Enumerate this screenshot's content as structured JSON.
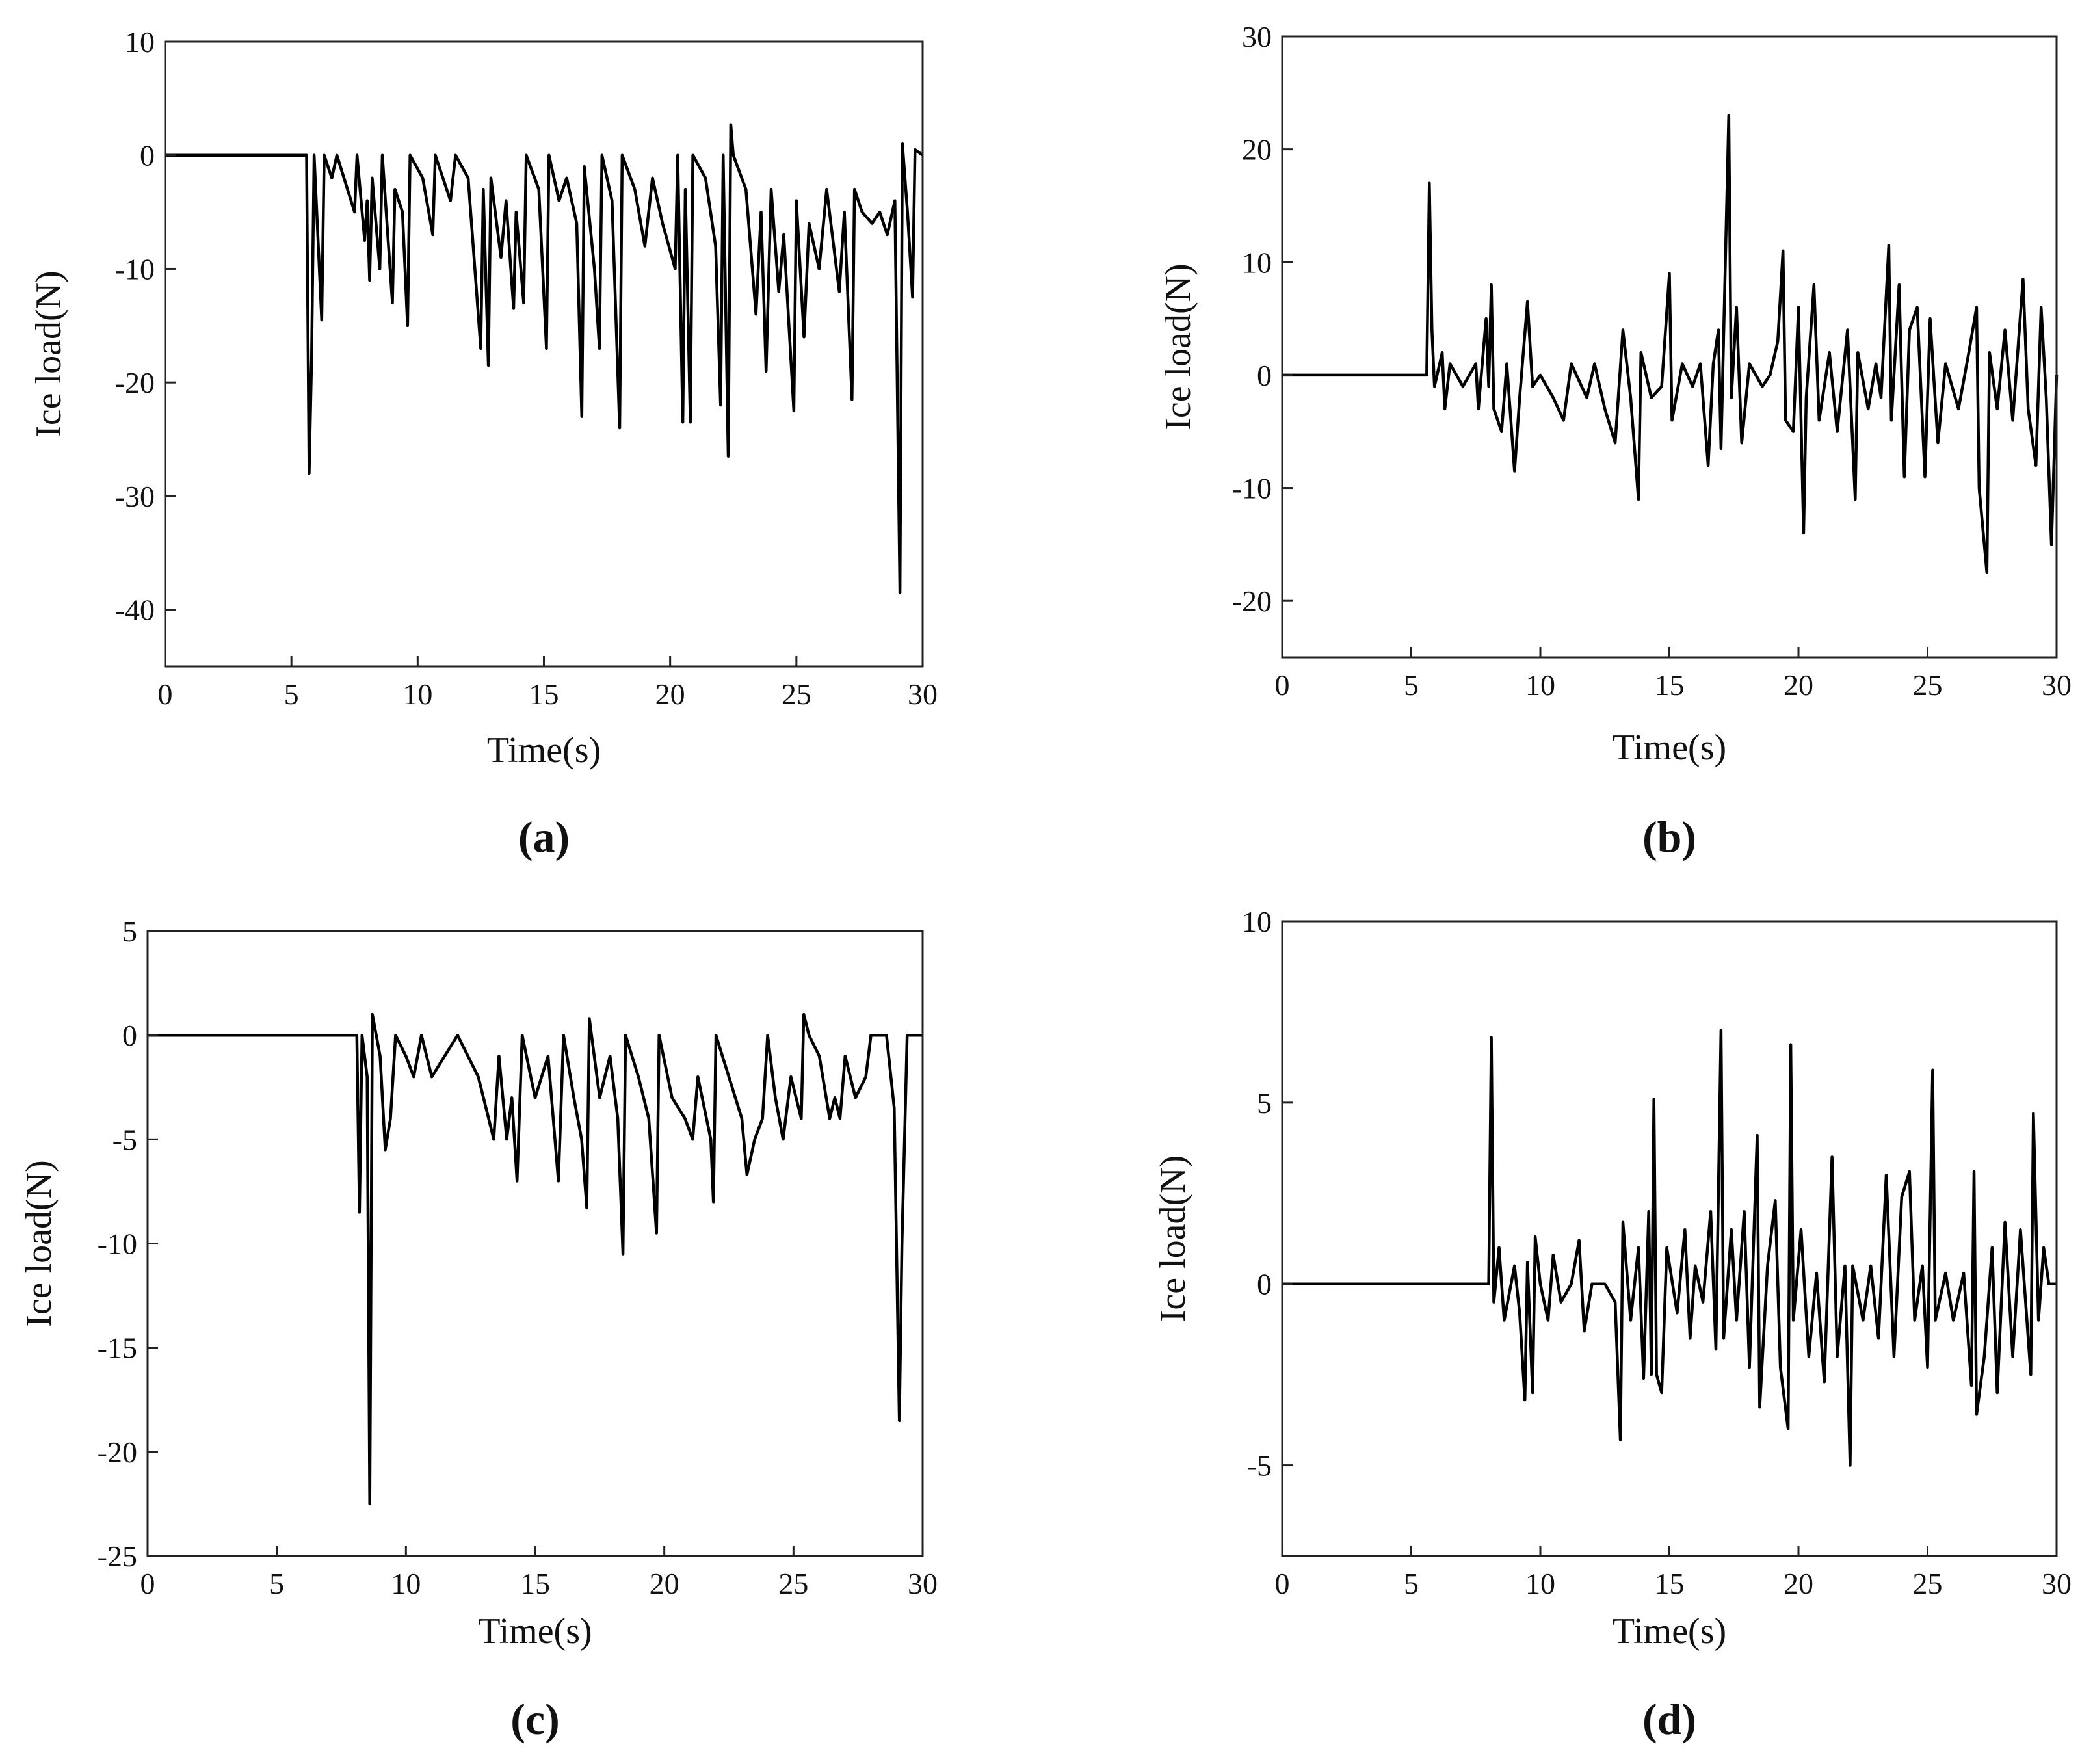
{
  "chart_data": [
    {
      "type": "line",
      "panel_label": "(a)",
      "xlabel": "Time(s)",
      "ylabel": "Ice load(N)",
      "color": "#000000",
      "xlim": [
        0,
        30
      ],
      "ylim": [
        -45,
        10
      ],
      "xticks": [
        0,
        5,
        10,
        15,
        20,
        25,
        30
      ],
      "yticks": [
        -40,
        -30,
        -20,
        -10,
        0,
        10
      ],
      "x": [
        0,
        5.6,
        5.7,
        5.8,
        5.9,
        6.2,
        6.3,
        6.6,
        6.8,
        7.5,
        7.6,
        7.9,
        8.0,
        8.1,
        8.2,
        8.5,
        8.6,
        9.0,
        9.1,
        9.4,
        9.6,
        9.7,
        10.2,
        10.6,
        10.7,
        11.3,
        11.5,
        12.0,
        12.5,
        12.6,
        12.8,
        12.9,
        13.3,
        13.5,
        13.8,
        13.9,
        14.2,
        14.3,
        14.8,
        15.1,
        15.2,
        15.6,
        15.9,
        16.3,
        16.5,
        16.6,
        17.0,
        17.2,
        17.3,
        17.7,
        18.0,
        18.1,
        18.6,
        19.0,
        19.3,
        19.7,
        20.2,
        20.3,
        20.5,
        20.6,
        20.8,
        20.9,
        21.4,
        21.8,
        22.0,
        22.1,
        22.3,
        22.4,
        22.5,
        23.0,
        23.4,
        23.6,
        23.8,
        24.0,
        24.3,
        24.5,
        24.9,
        25.0,
        25.3,
        25.5,
        25.9,
        26.2,
        26.7,
        26.9,
        27.2,
        27.3,
        27.6,
        28.0,
        28.3,
        28.6,
        28.9,
        29.1,
        29.2,
        29.4,
        29.6,
        29.7,
        30
      ],
      "values": [
        0,
        0,
        -28,
        -18,
        0,
        -14.5,
        0,
        -2,
        0,
        -5,
        0,
        -7.5,
        -4,
        -11,
        -2,
        -10,
        0,
        -13,
        -3,
        -5,
        -15,
        0,
        -2,
        -7,
        0,
        -4,
        0,
        -2,
        -17,
        -3,
        -18.5,
        -2,
        -9,
        -4,
        -13.5,
        -5,
        -13,
        0,
        -3,
        -17,
        0,
        -4,
        -2,
        -6,
        -23,
        -1,
        -10,
        -17,
        0,
        -4,
        -24,
        0,
        -3,
        -8,
        -2,
        -6,
        -10,
        0,
        -23.5,
        -3,
        -23.5,
        0,
        -2,
        -8,
        -22,
        0,
        -26.5,
        2.7,
        0,
        -3,
        -14,
        -5,
        -19,
        -3,
        -12,
        -7,
        -22.5,
        -4,
        -16,
        -6,
        -10,
        -3,
        -12,
        -5,
        -21.5,
        -3,
        -5,
        -6,
        -5,
        -7,
        -4,
        -38.5,
        1,
        -5,
        -12.5,
        0.5,
        0
      ]
    },
    {
      "type": "line",
      "panel_label": "(b)",
      "xlabel": "Time(s)",
      "ylabel": "Ice load(N)",
      "color": "#000000",
      "xlim": [
        0,
        30
      ],
      "ylim": [
        -25,
        30
      ],
      "xticks": [
        0,
        5,
        10,
        15,
        20,
        25,
        30
      ],
      "yticks": [
        -20,
        -10,
        0,
        10,
        20,
        30
      ],
      "x": [
        0,
        5.6,
        5.7,
        5.8,
        5.9,
        6.2,
        6.3,
        6.5,
        7.0,
        7.5,
        7.6,
        7.9,
        8.0,
        8.1,
        8.2,
        8.5,
        8.7,
        9.0,
        9.2,
        9.5,
        9.7,
        10.0,
        10.5,
        10.9,
        11.2,
        11.8,
        12.1,
        12.5,
        12.9,
        13.2,
        13.5,
        13.8,
        13.9,
        14.3,
        14.7,
        15.0,
        15.1,
        15.5,
        15.9,
        16.2,
        16.5,
        16.7,
        16.9,
        17.0,
        17.3,
        17.4,
        17.6,
        17.8,
        18.1,
        18.6,
        18.9,
        19.2,
        19.4,
        19.5,
        19.8,
        20.0,
        20.2,
        20.3,
        20.6,
        20.8,
        21.2,
        21.5,
        21.9,
        22.2,
        22.3,
        22.7,
        23.0,
        23.2,
        23.5,
        23.6,
        23.9,
        24.1,
        24.3,
        24.6,
        24.9,
        25.1,
        25.4,
        25.7,
        26.2,
        26.6,
        26.9,
        27.0,
        27.3,
        27.4,
        27.7,
        28.0,
        28.3,
        28.7,
        28.9,
        29.2,
        29.4,
        29.6,
        29.8,
        30
      ],
      "values": [
        0,
        0,
        17,
        4,
        -1,
        2,
        -3,
        1,
        -1,
        1,
        -3,
        5,
        -1,
        8,
        -3,
        -5,
        1,
        -8.5,
        -2,
        6.5,
        -1,
        0,
        -2,
        -4,
        1,
        -2,
        1,
        -3,
        -6,
        4,
        -2,
        -11,
        2,
        -2,
        -1,
        9,
        -4,
        1,
        -1,
        1,
        -8,
        1,
        4,
        -6.5,
        23,
        -2,
        6,
        -6,
        1,
        -1,
        0,
        3,
        11,
        -4,
        -5,
        6,
        -14,
        -2,
        8,
        -4,
        2,
        -5,
        4,
        -11,
        2,
        -3,
        1,
        -2,
        11.5,
        -4,
        8,
        -9,
        4,
        6,
        -9,
        5,
        -6,
        1,
        -3,
        2,
        6,
        -10,
        -17.5,
        2,
        -3,
        4,
        -4,
        8.5,
        -3,
        -8,
        6,
        -2,
        -15,
        0
      ]
    },
    {
      "type": "line",
      "panel_label": "(c)",
      "xlabel": "Time(s)",
      "ylabel": "Ice load(N)",
      "color": "#000000",
      "xlim": [
        0,
        30
      ],
      "ylim": [
        -25,
        5
      ],
      "xticks": [
        0,
        5,
        10,
        15,
        20,
        25,
        30
      ],
      "yticks": [
        -25,
        -20,
        -15,
        -10,
        -5,
        0,
        5
      ],
      "x": [
        0,
        8.1,
        8.2,
        8.3,
        8.5,
        8.6,
        8.7,
        9.0,
        9.2,
        9.4,
        9.6,
        10.0,
        10.3,
        10.6,
        11.0,
        11.5,
        12.0,
        12.8,
        13.2,
        13.4,
        13.6,
        13.9,
        14.1,
        14.3,
        14.5,
        15.0,
        15.5,
        15.9,
        16.1,
        16.5,
        16.8,
        17.0,
        17.1,
        17.5,
        17.9,
        18.2,
        18.4,
        18.5,
        19.0,
        19.4,
        19.7,
        19.8,
        20.3,
        20.8,
        21.1,
        21.3,
        21.8,
        21.9,
        22.0,
        22.5,
        23.0,
        23.2,
        23.5,
        23.8,
        24.0,
        24.3,
        24.6,
        24.9,
        25.3,
        25.4,
        25.6,
        26.0,
        26.4,
        26.6,
        26.8,
        27.0,
        27.4,
        27.8,
        28.0,
        28.6,
        28.9,
        29.1,
        29.2,
        29.4,
        30
      ],
      "values": [
        0,
        0,
        -8.5,
        0,
        -2,
        -22.5,
        1,
        -1,
        -5.5,
        -4,
        0,
        -1,
        -2,
        0,
        -2,
        -1,
        0,
        -2,
        -4,
        -5,
        -1,
        -5,
        -3,
        -7,
        0,
        -3,
        -1,
        -7,
        0,
        -3,
        -5,
        -8.3,
        0.8,
        -3,
        -1,
        -4,
        -10.5,
        0,
        -2,
        -4,
        -9.5,
        0,
        -3,
        -4,
        -5,
        -2,
        -5,
        -8,
        0,
        -2,
        -4,
        -6.7,
        -5,
        -4,
        0,
        -3,
        -5,
        -2,
        -4,
        1,
        0,
        -1,
        -4,
        -3,
        -4,
        -1,
        -3,
        -2,
        0,
        0,
        -3.5,
        -18.5,
        -10,
        0,
        0
      ]
    },
    {
      "type": "line",
      "panel_label": "(d)",
      "xlabel": "Time(s)",
      "ylabel": "Ice load(N)",
      "color": "#000000",
      "xlim": [
        0,
        30
      ],
      "ylim": [
        -7.5,
        10
      ],
      "xticks": [
        0,
        5,
        10,
        15,
        20,
        25,
        30
      ],
      "yticks": [
        -5,
        0,
        5,
        10
      ],
      "x": [
        0,
        8.0,
        8.1,
        8.2,
        8.4,
        8.6,
        9.0,
        9.2,
        9.4,
        9.5,
        9.7,
        9.8,
        10.0,
        10.3,
        10.5,
        10.8,
        11.2,
        11.5,
        11.7,
        12.0,
        12.5,
        12.9,
        13.1,
        13.2,
        13.5,
        13.8,
        14.0,
        14.2,
        14.3,
        14.4,
        14.5,
        14.7,
        14.9,
        15.3,
        15.6,
        15.8,
        16.0,
        16.3,
        16.6,
        16.8,
        17.0,
        17.1,
        17.4,
        17.6,
        17.9,
        18.1,
        18.4,
        18.5,
        18.8,
        19.1,
        19.3,
        19.6,
        19.7,
        19.8,
        20.1,
        20.4,
        20.7,
        21.0,
        21.3,
        21.5,
        21.8,
        22.0,
        22.1,
        22.5,
        22.8,
        23.1,
        23.4,
        23.7,
        24.0,
        24.3,
        24.5,
        24.8,
        25.0,
        25.2,
        25.3,
        25.7,
        26.0,
        26.4,
        26.7,
        26.8,
        26.9,
        27.2,
        27.5,
        27.7,
        28.0,
        28.3,
        28.6,
        29.0,
        29.1,
        29.3,
        29.5,
        29.7,
        30
      ],
      "values": [
        0,
        0,
        6.8,
        -0.5,
        1,
        -1,
        0.5,
        -0.8,
        -3.2,
        0.6,
        -3,
        1.3,
        0,
        -1,
        0.8,
        -0.5,
        0,
        1.2,
        -1.3,
        0,
        0,
        -0.5,
        -4.3,
        1.7,
        -1,
        1,
        -2.6,
        2,
        -2.5,
        5.1,
        -2.5,
        -3,
        1,
        -0.8,
        1.5,
        -1.5,
        0.5,
        -0.5,
        2,
        -1.8,
        7,
        -1.5,
        1.5,
        -1,
        2,
        -2.3,
        4.1,
        -3.4,
        0.5,
        2.3,
        -2.3,
        -4,
        6.6,
        -1,
        1.5,
        -2,
        0.3,
        -2.7,
        3.5,
        -2,
        0.5,
        -5,
        0.5,
        -1,
        0.5,
        -1.5,
        3,
        -2,
        2.4,
        3.1,
        -1,
        0.5,
        -2.3,
        5.9,
        -1,
        0.3,
        -1,
        0.3,
        -2.8,
        3.1,
        -3.6,
        -2,
        1,
        -3,
        1.7,
        -2,
        1.5,
        -2.5,
        4.7,
        -1,
        1,
        0,
        0
      ]
    }
  ]
}
